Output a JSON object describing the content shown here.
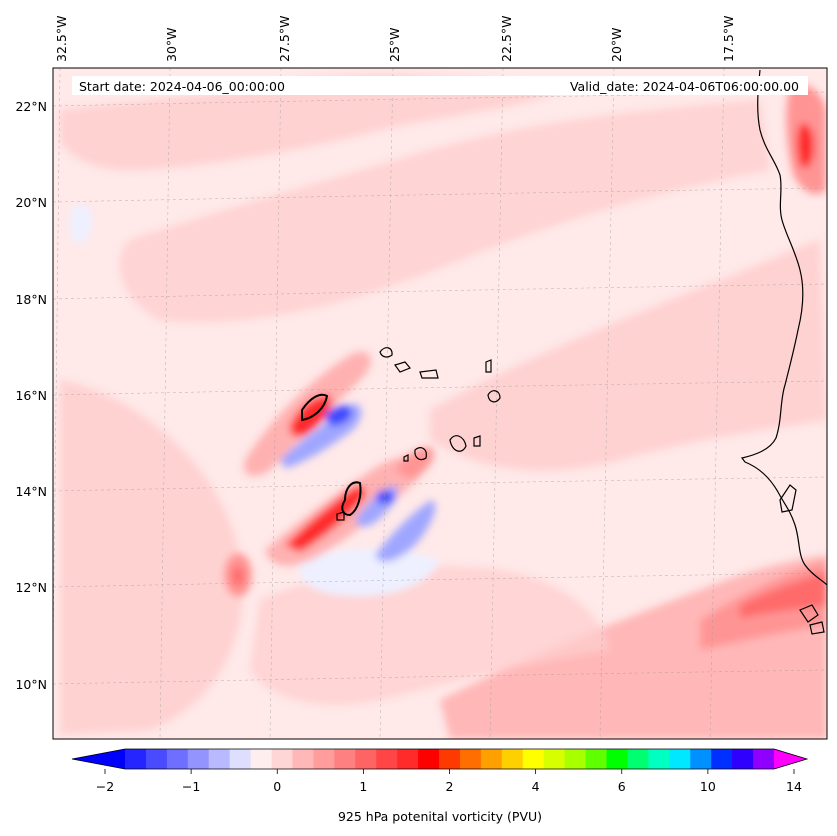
{
  "map": {
    "start_date": "Start date: 2024-04-06_00:00:00",
    "valid_date": "Valid_date: 2024-04-06T06:00:00.00",
    "lon_labels": [
      "32.5°W",
      "30°W",
      "27.5°W",
      "25°W",
      "22.5°W",
      "20°W",
      "17.5°W"
    ],
    "lat_labels": [
      "22°N",
      "20°N",
      "18°N",
      "16°N",
      "14°N",
      "12°N",
      "10°N"
    ],
    "colors": {
      "pale": "#ffe9e9",
      "light": "#ffcece",
      "medium": "#ffb1b1",
      "strong": "#ff9494",
      "deep": "#ff6a6a",
      "red": "#ff2a2a",
      "blue_light": "#eef0ff",
      "blue_mid": "#9fa6ff",
      "blue_deep": "#3e48ff"
    }
  },
  "colorbar": {
    "label": "925 hPa potenital vorticity (PVU)",
    "ticks": [
      "−2",
      "−1",
      "0",
      "1",
      "2",
      "4",
      "6",
      "10",
      "14"
    ],
    "colors": [
      "#0000ff",
      "#2525ff",
      "#4a4aff",
      "#6f6fff",
      "#9494ff",
      "#b9b9ff",
      "#dedeff",
      "#ffeeee",
      "#ffd6d6",
      "#ffb8b8",
      "#ff9c9c",
      "#ff8080",
      "#ff6464",
      "#ff4545",
      "#ff2a2a",
      "#ff0000",
      "#ff3a00",
      "#ff6e00",
      "#ffa000",
      "#ffd000",
      "#ffff00",
      "#d8ff00",
      "#a8ff00",
      "#60ff00",
      "#00ff00",
      "#00ff70",
      "#00ffc0",
      "#00e8ff",
      "#0090ff",
      "#0030ff",
      "#3000ff",
      "#9000ff",
      "#ff00ff"
    ]
  }
}
